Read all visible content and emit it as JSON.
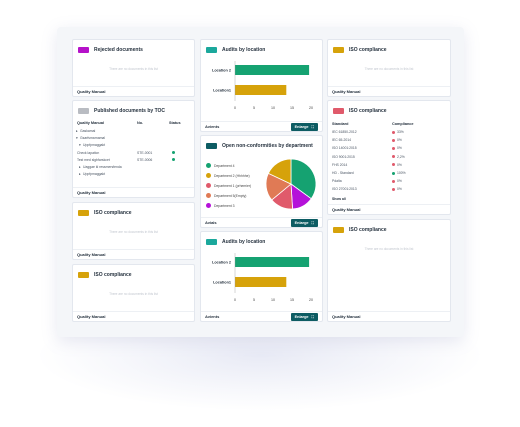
{
  "placeholder_text": "There are no documents in this list",
  "footer_label_qm": "Quality Manual",
  "enlarge_label": "Enlarge",
  "columns": {
    "left": {
      "rejected": {
        "title": "Rejected  documents",
        "tag_color": "#b512c9"
      },
      "published": {
        "title": "Published documents by TOC",
        "tag_color": "#b9bcc2",
        "headers": [
          "Quality Manual",
          "No.",
          "Status"
        ],
        "rows": [
          {
            "label": "Gaskamal",
            "indent": 1,
            "marker": "▸",
            "no": "",
            "status": ""
          },
          {
            "label": "Gsarfsmarnamal",
            "indent": 1,
            "marker": "▾",
            "no": "",
            "status": ""
          },
          {
            "label": "Uppfpmaggakt",
            "indent": 2,
            "marker": "▾",
            "no": "",
            "status": ""
          },
          {
            "label": "Check lapaticn",
            "indent": 0,
            "marker": "",
            "no": "STE-0001",
            "status": "green"
          },
          {
            "label": "Test med slgbfarskcet",
            "indent": 0,
            "marker": "",
            "no": "STE-0006",
            "status": "green"
          },
          {
            "label": "Uaggae kl ressmersfenda",
            "indent": 2,
            "marker": "▸",
            "no": "",
            "status": ""
          },
          {
            "label": "Uppfpmaggakt",
            "indent": 2,
            "marker": "▸",
            "no": "",
            "status": ""
          }
        ]
      },
      "iso1": {
        "title": "ISO compliance",
        "tag_color": "#d6a20a"
      },
      "iso2": {
        "title": "ISO compliance",
        "tag_color": "#d6a20a"
      }
    },
    "middle": {
      "audits1": {
        "title": "Audits by location",
        "tag_color": "#1ba89c",
        "footer": "Avients",
        "chart_data": {
          "type": "bar",
          "orientation": "horizontal",
          "categories": [
            "Location 2",
            "Location1"
          ],
          "values": [
            19.5,
            13.5
          ],
          "colors": [
            "#15a271",
            "#d6a20a"
          ],
          "xlim": [
            0,
            20
          ],
          "xticks": [
            "0",
            "5",
            "10",
            "15",
            "20"
          ]
        }
      },
      "nonconf": {
        "title": "Open non-conformities by department",
        "tag_color": "#0d5c63",
        "footer": "Avials",
        "chart_data": {
          "type": "pie",
          "categories": [
            "Department 4",
            "Department 2 (Hhhhhe)",
            "Department 1 (prhemier)",
            "Department 5(Empty)",
            "Department 3"
          ],
          "values": [
            35,
            18,
            15,
            18,
            14
          ],
          "colors": [
            "#15a271",
            "#d6a20a",
            "#e05a6b",
            "#e07a55",
            "#b512d9"
          ],
          "pie_order_colors": [
            "#15a271",
            "#b512d9",
            "#e05a6b",
            "#e07a55",
            "#d6a20a"
          ]
        }
      },
      "audits2": {
        "title": "Audits by location",
        "tag_color": "#1ba89c",
        "footer": "Avients",
        "chart_data": {
          "type": "bar",
          "orientation": "horizontal",
          "categories": [
            "Location 2",
            "Location1"
          ],
          "values": [
            19.5,
            13.5
          ],
          "colors": [
            "#15a271",
            "#d6a20a"
          ],
          "xlim": [
            0,
            20
          ],
          "xticks": [
            "0",
            "5",
            "10",
            "15",
            "20"
          ]
        }
      }
    },
    "right": {
      "iso_top": {
        "title": "ISO compliance",
        "tag_color": "#d6a20a"
      },
      "iso_table": {
        "title": "ISO compliance",
        "tag_color": "#e05a6b",
        "headers": [
          "Standard",
          "Compliance"
        ],
        "rows": [
          {
            "standard": "IEC 61850-2012",
            "dot": "#e05a6b",
            "value": "33%"
          },
          {
            "standard": "IEC 65-2014",
            "dot": "#e05a6b",
            "value": "0%"
          },
          {
            "standard": "ISO 14001:2015",
            "dot": "#e05a6b",
            "value": "0%"
          },
          {
            "standard": "ISO 9001:2015",
            "dot": "#e05a6b",
            "value": "2,2%"
          },
          {
            "standard": "FHS 2014",
            "dot": "#e05a6b",
            "value": "0%"
          },
          {
            "standard": "HD - Standard",
            "dot": "#15a271",
            "value": "100%"
          },
          {
            "standard": "Pdalta",
            "dot": "#e05a6b",
            "value": "0%"
          },
          {
            "standard": "ISO 27001:2013",
            "dot": "#e05a6b",
            "value": "0%"
          }
        ],
        "show_all": "Show all"
      },
      "iso_bottom": {
        "title": "ISO compliance",
        "tag_color": "#d6a20a"
      }
    }
  }
}
